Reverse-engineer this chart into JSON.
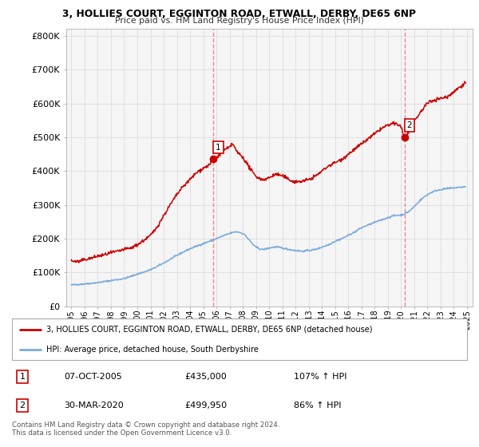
{
  "title_line1": "3, HOLLIES COURT, EGGINTON ROAD, ETWALL, DERBY, DE65 6NP",
  "title_line2": "Price paid vs. HM Land Registry's House Price Index (HPI)",
  "ylabel_ticks": [
    "£0",
    "£100K",
    "£200K",
    "£300K",
    "£400K",
    "£500K",
    "£600K",
    "£700K",
    "£800K"
  ],
  "ytick_vals": [
    0,
    100000,
    200000,
    300000,
    400000,
    500000,
    600000,
    700000,
    800000
  ],
  "ylim": [
    0,
    820000
  ],
  "xlim_start": 1994.6,
  "xlim_end": 2025.4,
  "xtick_labels": [
    "1995",
    "1996",
    "1997",
    "1998",
    "1999",
    "2000",
    "2001",
    "2002",
    "2003",
    "2004",
    "2005",
    "2006",
    "2007",
    "2008",
    "2009",
    "2010",
    "2011",
    "2012",
    "2013",
    "2014",
    "2015",
    "2016",
    "2017",
    "2018",
    "2019",
    "2020",
    "2021",
    "2022",
    "2023",
    "2024",
    "2025"
  ],
  "hpi_color": "#7aabdc",
  "price_color": "#cc0000",
  "vline_color": "#ee8888",
  "transaction1_x": 2005.77,
  "transaction1_y": 435000,
  "transaction1_label": "1",
  "transaction2_x": 2020.25,
  "transaction2_y": 499950,
  "transaction2_label": "2",
  "legend_line1": "3, HOLLIES COURT, EGGINTON ROAD, ETWALL, DERBY, DE65 6NP (detached house)",
  "legend_line2": "HPI: Average price, detached house, South Derbyshire",
  "table_rows": [
    [
      "1",
      "07-OCT-2005",
      "£435,000",
      "107% ↑ HPI"
    ],
    [
      "2",
      "30-MAR-2020",
      "£499,950",
      "86% ↑ HPI"
    ]
  ],
  "footer": "Contains HM Land Registry data © Crown copyright and database right 2024.\nThis data is licensed under the Open Government Licence v3.0.",
  "background_color": "#ffffff",
  "grid_color": "#dddddd",
  "hpi_anchors": [
    [
      1995.0,
      63000
    ],
    [
      1996.0,
      66000
    ],
    [
      1997.0,
      70000
    ],
    [
      1998.0,
      76000
    ],
    [
      1999.0,
      82000
    ],
    [
      2000.0,
      95000
    ],
    [
      2001.0,
      108000
    ],
    [
      2002.0,
      128000
    ],
    [
      2003.0,
      150000
    ],
    [
      2004.0,
      170000
    ],
    [
      2005.0,
      185000
    ],
    [
      2006.0,
      200000
    ],
    [
      2007.0,
      215000
    ],
    [
      2007.5,
      220000
    ],
    [
      2008.0,
      215000
    ],
    [
      2008.5,
      195000
    ],
    [
      2009.0,
      175000
    ],
    [
      2009.5,
      168000
    ],
    [
      2010.0,
      172000
    ],
    [
      2010.5,
      175000
    ],
    [
      2011.0,
      172000
    ],
    [
      2011.5,
      168000
    ],
    [
      2012.0,
      165000
    ],
    [
      2012.5,
      163000
    ],
    [
      2013.0,
      165000
    ],
    [
      2013.5,
      168000
    ],
    [
      2014.0,
      175000
    ],
    [
      2014.5,
      182000
    ],
    [
      2015.0,
      192000
    ],
    [
      2015.5,
      200000
    ],
    [
      2016.0,
      210000
    ],
    [
      2016.5,
      220000
    ],
    [
      2017.0,
      232000
    ],
    [
      2017.5,
      240000
    ],
    [
      2018.0,
      248000
    ],
    [
      2018.5,
      255000
    ],
    [
      2019.0,
      262000
    ],
    [
      2019.5,
      268000
    ],
    [
      2020.0,
      270000
    ],
    [
      2020.5,
      278000
    ],
    [
      2021.0,
      295000
    ],
    [
      2021.5,
      315000
    ],
    [
      2022.0,
      330000
    ],
    [
      2022.5,
      340000
    ],
    [
      2023.0,
      345000
    ],
    [
      2023.5,
      348000
    ],
    [
      2024.0,
      350000
    ],
    [
      2024.5,
      352000
    ]
  ],
  "price_anchors": [
    [
      1995.0,
      135000
    ],
    [
      1995.5,
      132000
    ],
    [
      1996.0,
      138000
    ],
    [
      1996.5,
      142000
    ],
    [
      1997.0,
      148000
    ],
    [
      1997.5,
      152000
    ],
    [
      1998.0,
      158000
    ],
    [
      1998.5,
      162000
    ],
    [
      1999.0,
      168000
    ],
    [
      1999.5,
      172000
    ],
    [
      2000.0,
      182000
    ],
    [
      2000.5,
      195000
    ],
    [
      2001.0,
      210000
    ],
    [
      2001.5,
      235000
    ],
    [
      2002.0,
      268000
    ],
    [
      2002.5,
      300000
    ],
    [
      2003.0,
      330000
    ],
    [
      2003.5,
      355000
    ],
    [
      2004.0,
      375000
    ],
    [
      2004.5,
      395000
    ],
    [
      2005.0,
      408000
    ],
    [
      2005.5,
      420000
    ],
    [
      2005.77,
      435000
    ],
    [
      2006.0,
      440000
    ],
    [
      2006.5,
      460000
    ],
    [
      2007.0,
      470000
    ],
    [
      2007.2,
      480000
    ],
    [
      2007.5,
      460000
    ],
    [
      2008.0,
      440000
    ],
    [
      2008.5,
      410000
    ],
    [
      2009.0,
      385000
    ],
    [
      2009.5,
      375000
    ],
    [
      2010.0,
      380000
    ],
    [
      2010.5,
      390000
    ],
    [
      2011.0,
      385000
    ],
    [
      2011.5,
      375000
    ],
    [
      2012.0,
      368000
    ],
    [
      2012.5,
      370000
    ],
    [
      2013.0,
      375000
    ],
    [
      2013.5,
      385000
    ],
    [
      2014.0,
      400000
    ],
    [
      2014.5,
      415000
    ],
    [
      2015.0,
      425000
    ],
    [
      2015.5,
      435000
    ],
    [
      2016.0,
      450000
    ],
    [
      2016.5,
      465000
    ],
    [
      2017.0,
      480000
    ],
    [
      2017.5,
      495000
    ],
    [
      2018.0,
      510000
    ],
    [
      2018.5,
      525000
    ],
    [
      2019.0,
      535000
    ],
    [
      2019.5,
      540000
    ],
    [
      2020.0,
      530000
    ],
    [
      2020.25,
      499950
    ],
    [
      2020.5,
      510000
    ],
    [
      2021.0,
      545000
    ],
    [
      2021.5,
      575000
    ],
    [
      2022.0,
      600000
    ],
    [
      2022.5,
      610000
    ],
    [
      2023.0,
      615000
    ],
    [
      2023.5,
      620000
    ],
    [
      2024.0,
      635000
    ],
    [
      2024.5,
      650000
    ]
  ]
}
